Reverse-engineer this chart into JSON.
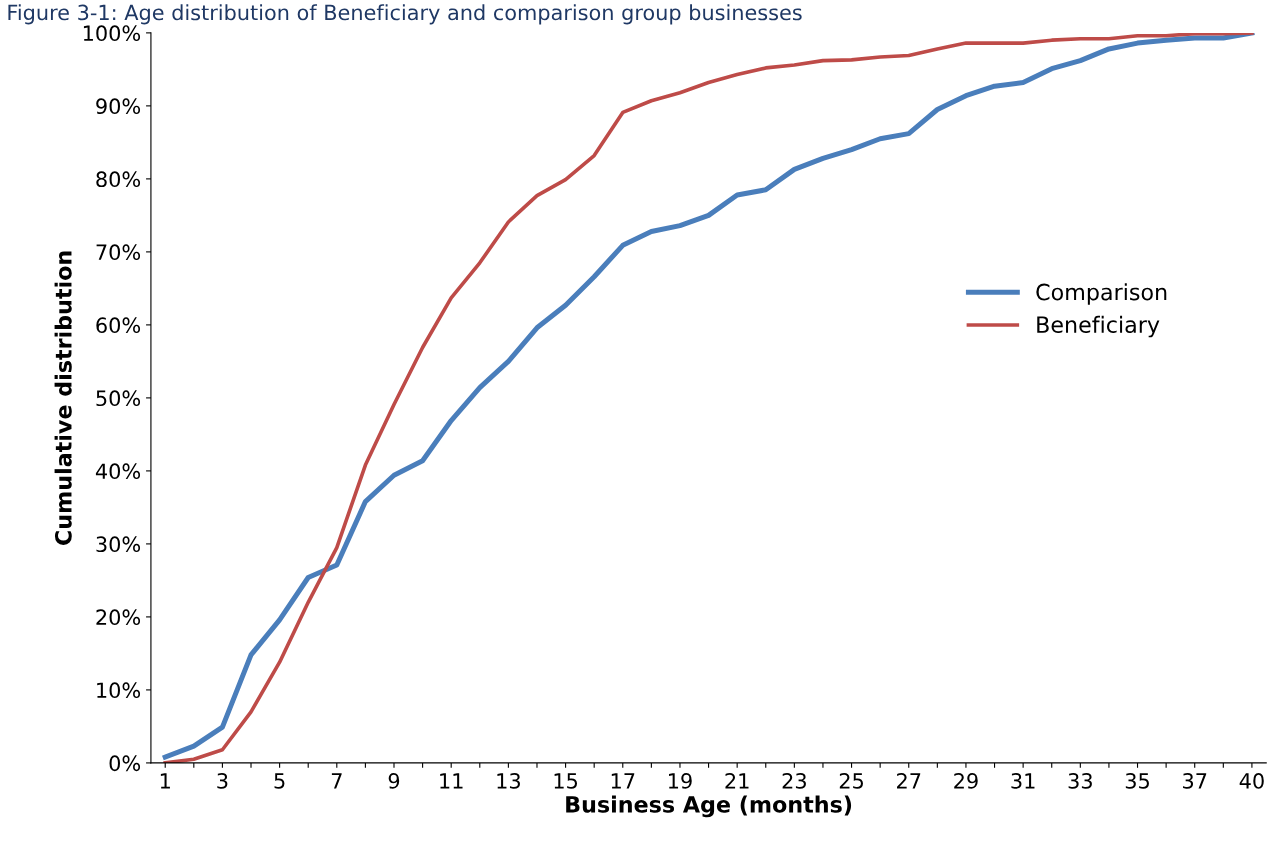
{
  "chart_data": {
    "type": "line",
    "title": "Figure 3-1: Age distribution of Beneficiary and comparison group businesses",
    "xlabel": "Business Age (months)",
    "ylabel": "Cumulative distribution",
    "categories": [
      "1",
      null,
      "3",
      null,
      "5",
      null,
      "7",
      null,
      "9",
      null,
      "11",
      null,
      "13",
      null,
      "15",
      null,
      "17",
      null,
      "19",
      null,
      "21",
      null,
      "23",
      null,
      "25",
      null,
      "27",
      null,
      "29",
      null,
      "31",
      null,
      "33",
      null,
      "35",
      null,
      "37",
      null,
      "40"
    ],
    "series": [
      {
        "name": "Comparison",
        "color": "#4a7ebb",
        "values": [
          0.8,
          2.3,
          4.9,
          14.8,
          19.6,
          25.4,
          27.1,
          35.8,
          39.4,
          41.4,
          46.9,
          51.4,
          55.0,
          59.6,
          62.7,
          66.6,
          70.9,
          72.8,
          73.6,
          75.0,
          77.8,
          78.5,
          81.3,
          82.8,
          84.0,
          85.5,
          86.2,
          89.5,
          91.4,
          92.7,
          93.2,
          95.1,
          96.2,
          97.8,
          98.6,
          99.0,
          99.3,
          99.3,
          100
        ]
      },
      {
        "name": "Beneficiary",
        "color": "#be4b48",
        "values": [
          0,
          0.5,
          1.8,
          7.0,
          13.8,
          22.0,
          29.5,
          40.8,
          49.1,
          56.9,
          63.7,
          68.5,
          74.1,
          77.7,
          79.9,
          83.2,
          89.1,
          90.7,
          91.8,
          93.2,
          94.3,
          95.2,
          95.6,
          96.2,
          96.3,
          96.7,
          96.9,
          97.8,
          98.6,
          98.6,
          98.6,
          99.0,
          99.2,
          99.2,
          99.6,
          99.6,
          99.9,
          99.9,
          100
        ]
      }
    ],
    "ylim": [
      0,
      100
    ],
    "yticks": [
      {
        "value": 0,
        "label": "0%"
      },
      {
        "value": 10,
        "label": "10%"
      },
      {
        "value": 20,
        "label": "20%"
      },
      {
        "value": 30,
        "label": "30%"
      },
      {
        "value": 40,
        "label": "40%"
      },
      {
        "value": 50,
        "label": "50%"
      },
      {
        "value": 60,
        "label": "60%"
      },
      {
        "value": 70,
        "label": "70%"
      },
      {
        "value": 80,
        "label": "80%"
      },
      {
        "value": 90,
        "label": "90%"
      },
      {
        "value": 100,
        "label": "100%"
      }
    ],
    "grid": false,
    "legend": "right",
    "marker": "none",
    "line_style": "solid"
  }
}
